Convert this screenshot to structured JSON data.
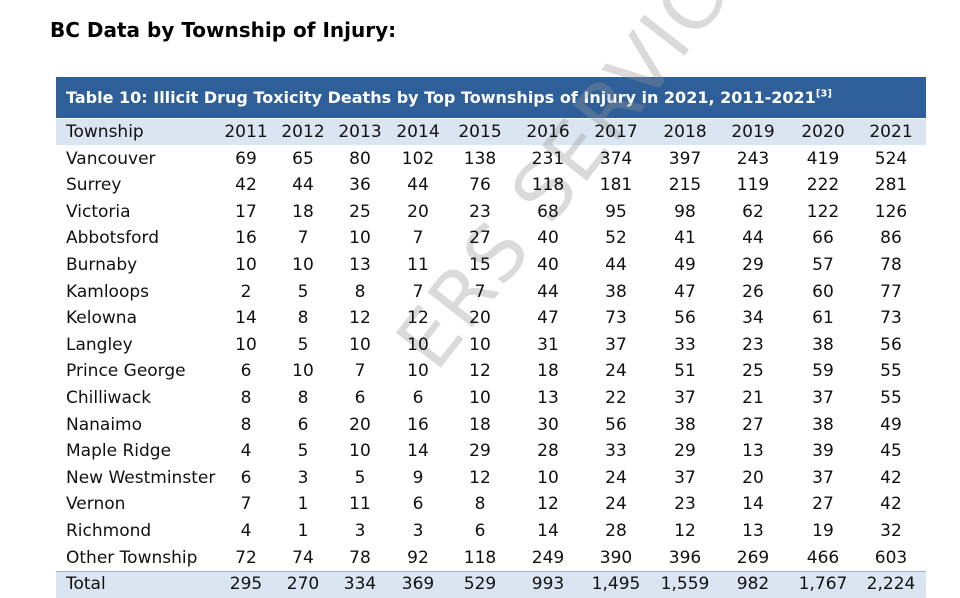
{
  "heading": "BC Data by Township of Injury:",
  "table": {
    "title": "Table 10: Illicit Drug Toxicity Deaths by Top Townships of Injury in 2021, 2011-2021",
    "title_note": "[3]",
    "columns": [
      "Township",
      "2011",
      "2012",
      "2013",
      "2014",
      "2015",
      "2016",
      "2017",
      "2018",
      "2019",
      "2020",
      "2021"
    ],
    "rows": [
      [
        "Vancouver",
        "69",
        "65",
        "80",
        "102",
        "138",
        "231",
        "374",
        "397",
        "243",
        "419",
        "524"
      ],
      [
        "Surrey",
        "42",
        "44",
        "36",
        "44",
        "76",
        "118",
        "181",
        "215",
        "119",
        "222",
        "281"
      ],
      [
        "Victoria",
        "17",
        "18",
        "25",
        "20",
        "23",
        "68",
        "95",
        "98",
        "62",
        "122",
        "126"
      ],
      [
        "Abbotsford",
        "16",
        "7",
        "10",
        "7",
        "27",
        "40",
        "52",
        "41",
        "44",
        "66",
        "86"
      ],
      [
        "Burnaby",
        "10",
        "10",
        "13",
        "11",
        "15",
        "40",
        "44",
        "49",
        "29",
        "57",
        "78"
      ],
      [
        "Kamloops",
        "2",
        "5",
        "8",
        "7",
        "7",
        "44",
        "38",
        "47",
        "26",
        "60",
        "77"
      ],
      [
        "Kelowna",
        "14",
        "8",
        "12",
        "12",
        "20",
        "47",
        "73",
        "56",
        "34",
        "61",
        "73"
      ],
      [
        "Langley",
        "10",
        "5",
        "10",
        "10",
        "10",
        "31",
        "37",
        "33",
        "23",
        "38",
        "56"
      ],
      [
        "Prince George",
        "6",
        "10",
        "7",
        "10",
        "12",
        "18",
        "24",
        "51",
        "25",
        "59",
        "55"
      ],
      [
        "Chilliwack",
        "8",
        "8",
        "6",
        "6",
        "10",
        "13",
        "22",
        "37",
        "21",
        "37",
        "55"
      ],
      [
        "Nanaimo",
        "8",
        "6",
        "20",
        "16",
        "18",
        "30",
        "56",
        "38",
        "27",
        "38",
        "49"
      ],
      [
        "Maple Ridge",
        "4",
        "5",
        "10",
        "14",
        "29",
        "28",
        "33",
        "29",
        "13",
        "39",
        "45"
      ],
      [
        "New Westminster",
        "6",
        "3",
        "5",
        "9",
        "12",
        "10",
        "24",
        "37",
        "20",
        "37",
        "42"
      ],
      [
        "Vernon",
        "7",
        "1",
        "11",
        "6",
        "8",
        "12",
        "24",
        "23",
        "14",
        "27",
        "42"
      ],
      [
        "Richmond",
        "4",
        "1",
        "3",
        "3",
        "6",
        "14",
        "28",
        "12",
        "13",
        "19",
        "32"
      ],
      [
        "Other Township",
        "72",
        "74",
        "78",
        "92",
        "118",
        "249",
        "390",
        "396",
        "269",
        "466",
        "603"
      ]
    ],
    "total": [
      "Total",
      "295",
      "270",
      "334",
      "369",
      "529",
      "993",
      "1,495",
      "1,559",
      "982",
      "1,767",
      "2,224"
    ]
  },
  "watermark": "ERS SERVICE"
}
